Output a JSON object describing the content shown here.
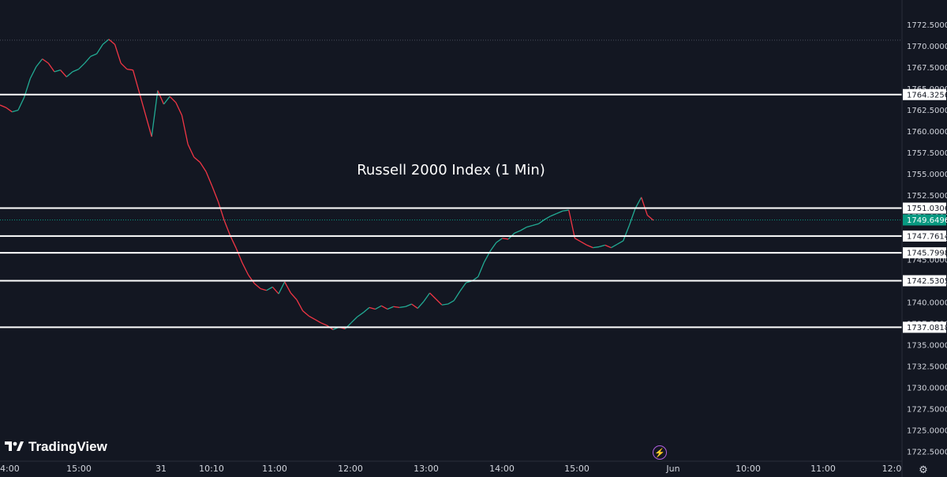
{
  "chart_data": {
    "type": "line",
    "title": "Russell 2000 Index (1 Min)",
    "y_ticks": [
      "1772.5000",
      "1770.0000",
      "1767.5000",
      "1765.0000",
      "1762.5000",
      "1760.0000",
      "1757.5000",
      "1755.0000",
      "1752.5000",
      "1750.0000",
      "1747.5000",
      "1745.0000",
      "1742.5000",
      "1740.0000",
      "1737.5000",
      "1735.0000",
      "1732.5000",
      "1730.0000",
      "1727.5000",
      "1725.0000",
      "1722.5000"
    ],
    "x_ticks": [
      "4:00",
      "15:00",
      "31",
      "10:10",
      "11:00",
      "12:00",
      "13:00",
      "14:00",
      "15:00",
      "Jun",
      "10:00",
      "11:00",
      "12:0"
    ],
    "ylim": [
      1721.4,
      1775.4
    ],
    "levels": [
      "1764.3256",
      "1751.0306",
      "1747.7614",
      "1745.7998",
      "1742.5305",
      "1737.0818"
    ],
    "current_price": "1749.6496",
    "prior_high": 1770.7,
    "series": [
      {
        "values": [
          1763.1,
          1762.8,
          1762.3,
          1762.5,
          1764.0,
          1766.2,
          1767.6,
          1768.5,
          1768.0,
          1767.0,
          1767.2,
          1766.4,
          1767.0,
          1767.3,
          1768.0,
          1768.8,
          1769.1,
          1770.2,
          1770.8,
          1770.2,
          1768.0,
          1767.3,
          1767.2,
          1759.4,
          1764.8,
          1763.2,
          1764.1,
          1763.4,
          1761.9,
          1758.5,
          1757.0,
          1756.4,
          1755.3,
          1753.6,
          1751.8,
          1749.6,
          1747.8,
          1746.3,
          1744.6,
          1743.2,
          1742.2,
          1741.6,
          1741.4,
          1741.8,
          1741.0,
          1742.4,
          1741.1,
          1740.3,
          1739.0,
          1738.4,
          1738.0,
          1737.6,
          1737.3,
          1736.8,
          1737.1,
          1736.9,
          1737.6,
          1738.3,
          1738.8,
          1739.4,
          1739.2,
          1739.6,
          1739.2,
          1739.5,
          1739.4,
          1739.5,
          1739.8,
          1739.3,
          1740.1,
          1741.1,
          1740.4,
          1739.7,
          1739.8,
          1740.2,
          1741.3,
          1742.3,
          1742.5,
          1743.0,
          1744.7,
          1746.0,
          1747.0,
          1747.5,
          1747.4,
          1748.1,
          1748.4,
          1748.8,
          1749.0,
          1749.2,
          1749.7,
          1750.1,
          1750.4,
          1750.7,
          1750.8,
          1747.5,
          1747.1,
          1746.7,
          1746.4,
          1746.5,
          1746.7,
          1746.4,
          1746.8,
          1747.2,
          1749.0,
          1751.0,
          1752.3,
          1750.2,
          1749.6
        ],
        "color": "#22ab94"
      }
    ],
    "grid": false,
    "legend": "none"
  },
  "branding": {
    "logo_text": "TradingView"
  },
  "icons": {
    "lightning": "lightning-icon",
    "settings": "gear-icon",
    "logo": "tradingview-logo-icon"
  },
  "colors": {
    "background": "#131722",
    "up": "#22ab94",
    "down": "#f23645",
    "level": "#ffffff",
    "current": "#089981"
  }
}
